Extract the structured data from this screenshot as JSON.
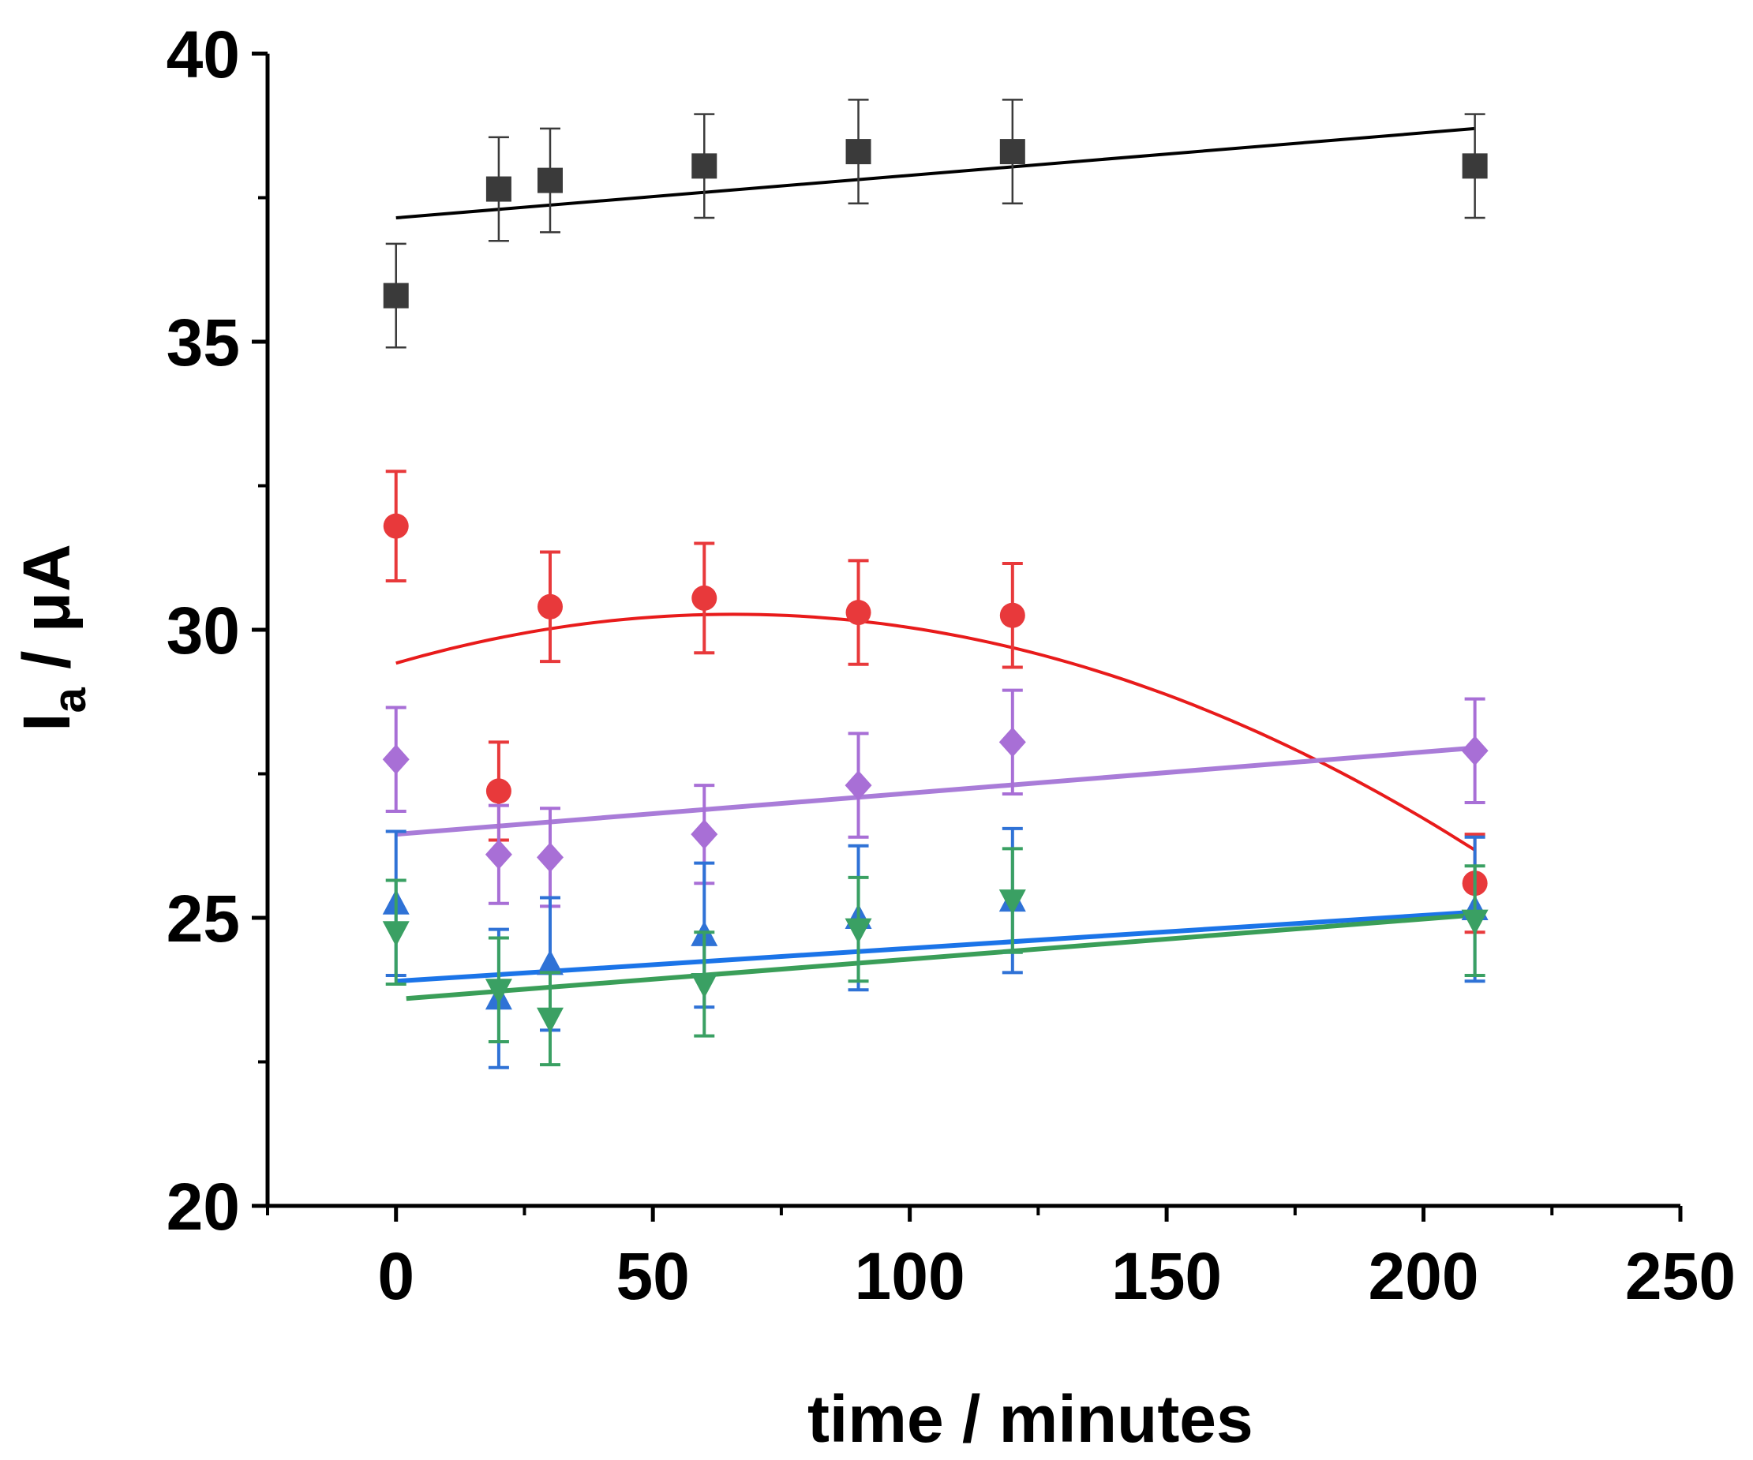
{
  "chart_data": {
    "type": "scatter",
    "title": "",
    "xlabel": "time / minutes",
    "ylabel": {
      "main": "I",
      "subscript": "a",
      "unit": " / μA"
    },
    "xlim": [
      -25,
      250
    ],
    "ylim": [
      20,
      40
    ],
    "x_ticks": [
      0,
      50,
      100,
      150,
      200,
      250
    ],
    "x_tick_labels": [
      "0",
      "50",
      "100",
      "150",
      "200",
      "250"
    ],
    "x_minor_ticks": [
      -25,
      25,
      75,
      125,
      175,
      225
    ],
    "y_ticks": [
      20,
      25,
      30,
      35,
      40
    ],
    "y_tick_labels": [
      "20",
      "25",
      "30",
      "35",
      "40"
    ],
    "y_minor_ticks": [
      22.5,
      27.5,
      32.5,
      37.5
    ],
    "grid": false,
    "series": [
      {
        "name": "black",
        "marker": "square",
        "color": "#3a3a3a",
        "line_color": "#000000",
        "x": [
          0,
          20,
          30,
          60,
          90,
          120,
          210
        ],
        "y": [
          35.8,
          37.65,
          37.8,
          38.05,
          38.3,
          38.3,
          38.05
        ],
        "err": [
          0.9,
          0.9,
          0.9,
          0.9,
          0.9,
          0.9,
          0.9
        ],
        "fit": {
          "kind": "linear",
          "x": [
            0,
            210
          ],
          "y": [
            37.15,
            38.7
          ]
        }
      },
      {
        "name": "red",
        "marker": "circle",
        "color": "#e8393b",
        "line_color": "#e81b1b",
        "x": [
          0,
          20,
          30,
          60,
          90,
          120,
          210
        ],
        "y": [
          31.8,
          27.2,
          30.4,
          30.55,
          30.3,
          30.25,
          25.6
        ],
        "err": [
          0.95,
          0.85,
          0.95,
          0.95,
          0.9,
          0.9,
          0.85
        ],
        "fit": {
          "kind": "quadratic",
          "x_range": [
            0,
            210
          ],
          "coef": [
            29.42,
            0.02584,
            -0.0001966
          ]
        }
      },
      {
        "name": "purple",
        "marker": "diamond",
        "color": "#a86fd6",
        "line_color": "#a97cd8",
        "x": [
          0,
          20,
          30,
          60,
          90,
          120,
          210
        ],
        "y": [
          27.75,
          26.1,
          26.05,
          26.45,
          27.3,
          28.05,
          27.9
        ],
        "err": [
          0.9,
          0.85,
          0.85,
          0.85,
          0.9,
          0.9,
          0.9
        ],
        "fit": {
          "kind": "linear",
          "x": [
            0,
            210
          ],
          "y": [
            26.45,
            27.95
          ]
        }
      },
      {
        "name": "blue",
        "marker": "triangle-up",
        "color": "#2f72d6",
        "line_color": "#1b74e8",
        "x": [
          0,
          20,
          30,
          60,
          90,
          120,
          210
        ],
        "y": [
          25.25,
          23.6,
          24.2,
          24.7,
          25.0,
          25.3,
          25.15
        ],
        "err": [
          1.25,
          1.2,
          1.15,
          1.25,
          1.25,
          1.25,
          1.25
        ],
        "fit": {
          "kind": "linear",
          "x": [
            0,
            210
          ],
          "y": [
            23.9,
            25.1
          ]
        }
      },
      {
        "name": "green",
        "marker": "triangle-down",
        "color": "#3aa063",
        "line_color": "#3a9e58",
        "x": [
          0,
          20,
          30,
          60,
          90,
          120,
          210
        ],
        "y": [
          24.75,
          23.75,
          23.25,
          23.85,
          24.8,
          25.3,
          24.95
        ],
        "err": [
          0.9,
          0.9,
          0.8,
          0.9,
          0.9,
          0.9,
          0.95
        ],
        "fit": {
          "kind": "linear",
          "x": [
            2,
            210
          ],
          "y": [
            23.6,
            25.05
          ]
        }
      }
    ]
  }
}
